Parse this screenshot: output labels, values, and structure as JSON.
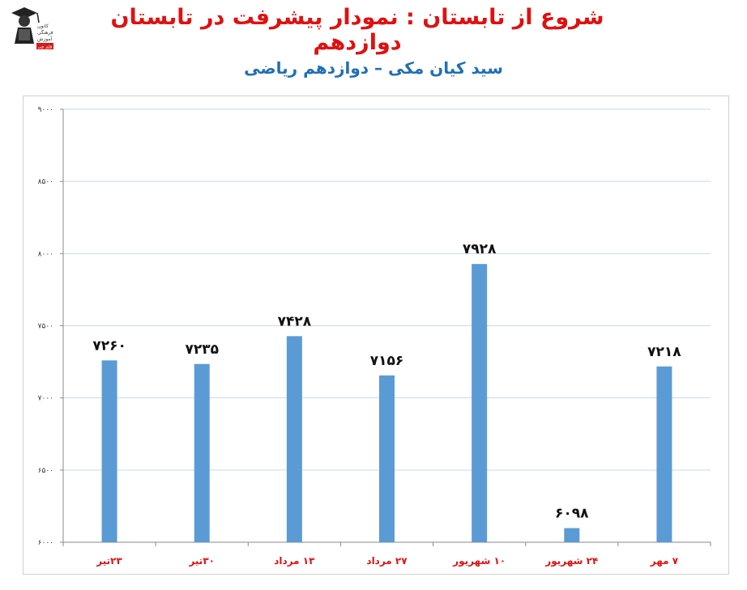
{
  "header": {
    "title": "شروع از تابستان : نمودار پیشرفت در تابستان دوازدهم",
    "subtitle": "سید کیان مکی – دوازدهم ریاضی"
  },
  "logo": {
    "icon": "graduate-logo-icon",
    "text_lines": [
      "کانون",
      "فرهنگی",
      "آموزش"
    ],
    "badge": "قلم چی"
  },
  "colors": {
    "bar": "#5b9bd5",
    "title": "#e01010",
    "subtitle": "#1f6fb5",
    "category_label": "#e01010",
    "grid": "#c5d9f1"
  },
  "chart_data": {
    "type": "bar",
    "categories": [
      "۲۳تیر",
      "۳۰تیر",
      "۱۳ مرداد",
      "۲۷ مرداد",
      "۱۰ شهریور",
      "۲۴ شهریور",
      "۷ مهر"
    ],
    "values": [
      7260,
      7235,
      7428,
      7156,
      7928,
      6098,
      7218
    ],
    "value_labels": [
      "۷۲۶۰",
      "۷۲۳۵",
      "۷۴۲۸",
      "۷۱۵۶",
      "۷۹۲۸",
      "۶۰۹۸",
      "۷۲۱۸"
    ],
    "ylim": [
      6000,
      9000
    ],
    "yticks": [
      6000,
      6500,
      7000,
      7500,
      8000,
      8500,
      9000
    ],
    "ytick_labels": [
      "۶۰۰۰",
      "۶۵۰۰",
      "۷۰۰۰",
      "۷۵۰۰",
      "۸۰۰۰",
      "۸۵۰۰",
      "۹۰۰۰"
    ],
    "grid": true,
    "legend": false
  }
}
